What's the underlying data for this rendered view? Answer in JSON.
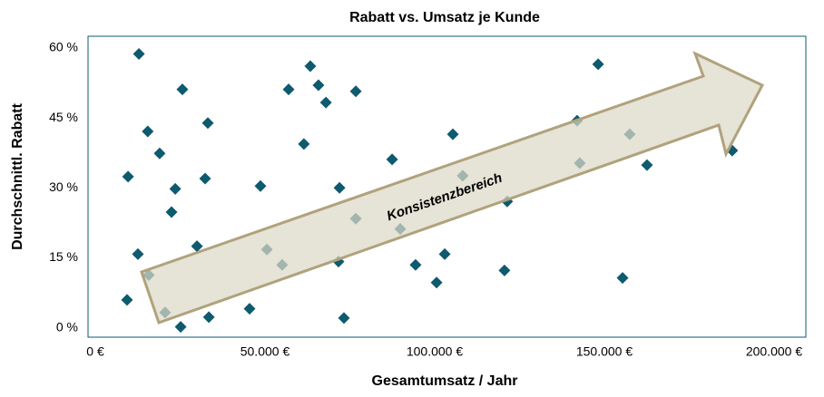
{
  "chart_data": {
    "type": "scatter",
    "title": "Rabatt vs. Umsatz je Kunde",
    "x_label": "Gesamtumsatz / Jahr",
    "y_label": "Durchschnittl. Rabatt",
    "annotation": "Konsistenzbereich",
    "color": "#0e5a6f",
    "x": [
      15000,
      27800,
      17600,
      35300,
      21100,
      11800,
      25700,
      34500,
      24600,
      14700,
      17900,
      11500,
      22700,
      27300,
      35600,
      32100,
      47600,
      50800,
      52700,
      57200,
      59100,
      65500,
      67900,
      70100,
      63600,
      74100,
      73800,
      75400,
      78900,
      78900,
      89600,
      92000,
      96500,
      102700,
      105100,
      107500,
      110400,
      122700,
      123500,
      144100,
      144900,
      150300,
      159600,
      157500,
      164700,
      189800
    ],
    "values": [
      58.7,
      51.1,
      42.1,
      43.9,
      37.4,
      32.4,
      29.8,
      32.0,
      24.8,
      15.8,
      11.3,
      6.0,
      3.3,
      0.2,
      2.3,
      17.5,
      4.1,
      30.4,
      16.8,
      13.5,
      51.1,
      56.1,
      52.0,
      48.3,
      39.4,
      30.0,
      14.2,
      2.1,
      50.7,
      23.4,
      36.1,
      21.2,
      13.5,
      9.7,
      15.8,
      41.5,
      32.6,
      12.3,
      27.1,
      44.4,
      35.3,
      56.5,
      41.5,
      10.7,
      34.9,
      38.0
    ],
    "xlim": [
      0,
      211500
    ],
    "ylim": [
      -2,
      62.5
    ],
    "xticks": [
      {
        "value": 0,
        "label": "0 €"
      },
      {
        "value": 50000,
        "label": "50.000 €"
      },
      {
        "value": 100000,
        "label": "100.000 €"
      },
      {
        "value": 150000,
        "label": "150.000 €"
      },
      {
        "value": 200000,
        "label": "200.000 €"
      }
    ],
    "yticks": [
      {
        "value": 0,
        "label": "0 %"
      },
      {
        "value": 15,
        "label": "15 %"
      },
      {
        "value": 30,
        "label": "30 %"
      },
      {
        "value": 45,
        "label": "45 %"
      },
      {
        "value": 60,
        "label": "60 %"
      }
    ]
  }
}
